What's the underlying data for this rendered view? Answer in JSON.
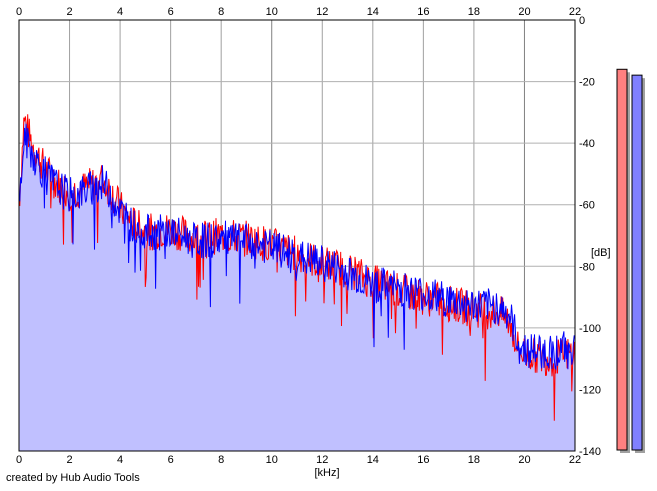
{
  "footer": {
    "credit": "created by Hub Audio Tools"
  },
  "chart_data": {
    "type": "area",
    "xlabel": "[kHz]",
    "ylabel": "[dB]",
    "xlim": [
      0,
      22
    ],
    "ylim": [
      -140,
      0
    ],
    "x_ticks": [
      "0",
      "2",
      "4",
      "6",
      "8",
      "10",
      "12",
      "14",
      "16",
      "18",
      "20",
      "22"
    ],
    "y_ticks": [
      "0",
      "-20",
      "-40",
      "-60",
      "-80",
      "-100",
      "-120",
      "-140"
    ],
    "grid": true,
    "fill_color": "#c0c0ff",
    "series": [
      {
        "color": "#ff0000",
        "x": [
          0,
          0.2,
          0.5,
          1,
          1.5,
          2,
          2.5,
          3,
          3.3,
          3.6,
          4,
          4.5,
          5,
          6,
          7,
          8,
          9,
          10,
          11,
          12,
          13,
          14,
          15,
          16,
          17,
          18,
          19,
          19.4,
          19.8,
          20,
          21,
          22
        ],
        "y": [
          -60,
          -32,
          -40,
          -48,
          -53,
          -56,
          -55,
          -53,
          -52,
          -55,
          -61,
          -66,
          -69,
          -68,
          -71,
          -70,
          -71,
          -73,
          -76,
          -79,
          -81,
          -85,
          -88,
          -90,
          -92,
          -94,
          -95,
          -98,
          -108,
          -108,
          -110,
          -108
        ]
      },
      {
        "color": "#0000ff",
        "x": [
          0,
          0.2,
          0.5,
          1,
          1.5,
          2,
          2.5,
          3,
          3.3,
          3.6,
          4,
          4.5,
          5,
          6,
          7,
          8,
          9,
          10,
          11,
          12,
          13,
          14,
          15,
          16,
          17,
          18,
          19,
          19.4,
          19.8,
          20,
          21,
          22
        ],
        "y": [
          -62,
          -38,
          -43,
          -50,
          -54,
          -57,
          -56,
          -54,
          -53,
          -56,
          -62,
          -67,
          -69,
          -69,
          -72,
          -71,
          -72,
          -74,
          -77,
          -79,
          -82,
          -86,
          -87,
          -89,
          -91,
          -93,
          -93,
          -96,
          -106,
          -107,
          -108,
          -106
        ]
      }
    ],
    "level_meters": [
      {
        "color": "#ff8080",
        "level_db": -10,
        "range_db": [
          -140,
          0
        ]
      },
      {
        "color": "#8080ff",
        "level_db": -12,
        "range_db": [
          -140,
          0
        ]
      }
    ]
  }
}
